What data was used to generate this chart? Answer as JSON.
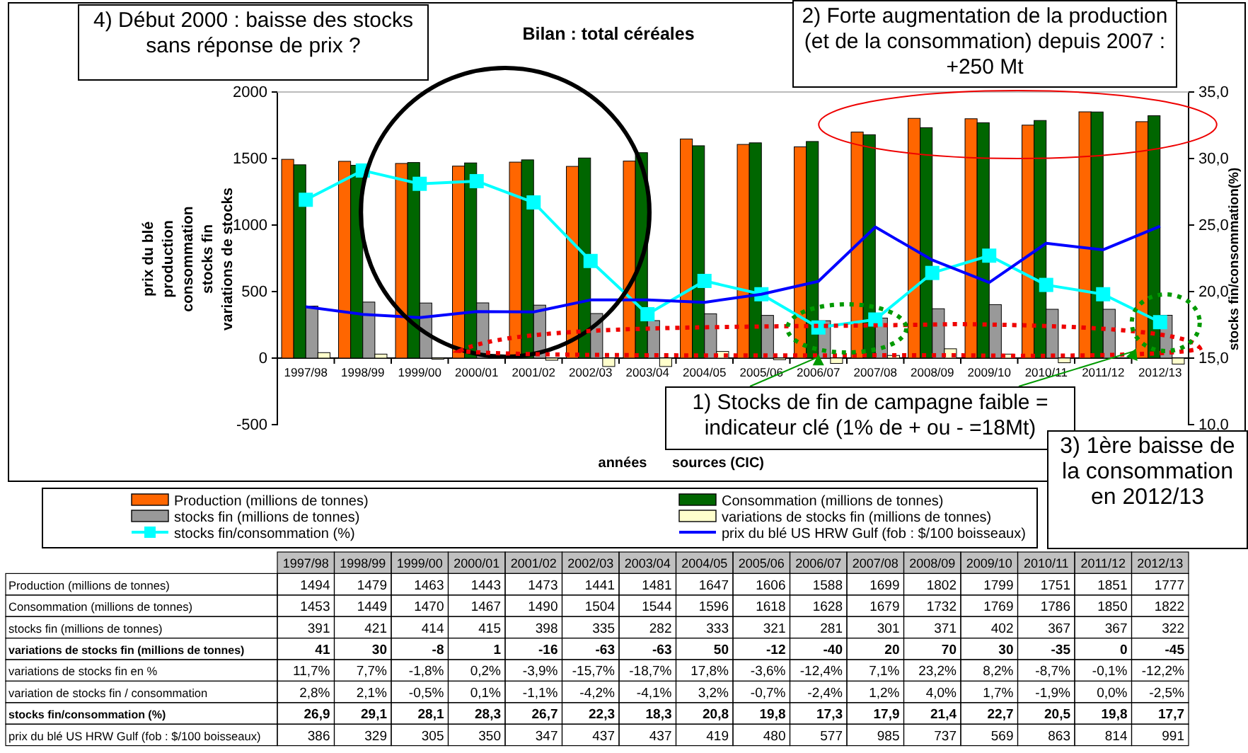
{
  "chart_data": {
    "type": "bar",
    "title": "Bilan : total céréales",
    "xlabel": "années",
    "ylabel": "prix du blé\nproduction\nconsommation\nstocks fin\nvariations de stocks",
    "y2label": "stocks fin/consommation(%)",
    "categories": [
      "1997/98",
      "1998/99",
      "1999/00",
      "2000/01",
      "2001/02",
      "2002/03",
      "2003/04",
      "2004/05",
      "2005/06",
      "2006/07",
      "2007/08",
      "2008/09",
      "2009/10",
      "2010/11",
      "2011/12",
      "2012/13"
    ],
    "ylim": [
      -500,
      2000
    ],
    "yticks": [
      -500,
      0,
      500,
      1000,
      1500,
      2000
    ],
    "y2lim": [
      10,
      35
    ],
    "y2ticks": [
      {
        "value": 10,
        "label": "10,0"
      },
      {
        "value": 15,
        "label": "15,0"
      },
      {
        "value": 20,
        "label": "20,0"
      },
      {
        "value": 25,
        "label": "25,0"
      },
      {
        "value": 30,
        "label": "30,0"
      },
      {
        "value": 35,
        "label": "35,0"
      }
    ],
    "legend": "bottom",
    "series": [
      {
        "name": "Production (millions de tonnes)",
        "color": "#ff6600",
        "values": [
          1494,
          1479,
          1463,
          1443,
          1473,
          1441,
          1481,
          1647,
          1606,
          1588,
          1699,
          1802,
          1799,
          1751,
          1851,
          1777
        ]
      },
      {
        "name": "Consommation (millions de tonnes)",
        "color": "#006600",
        "values": [
          1453,
          1449,
          1470,
          1467,
          1490,
          1504,
          1544,
          1596,
          1618,
          1628,
          1679,
          1732,
          1769,
          1786,
          1850,
          1822
        ]
      },
      {
        "name": "stocks fin (millions de tonnes)",
        "color": "#999999",
        "values": [
          391,
          421,
          414,
          415,
          398,
          335,
          282,
          333,
          321,
          281,
          301,
          371,
          402,
          367,
          367,
          322
        ]
      },
      {
        "name": "variations de stocks fin (millions de tonnes)",
        "color": "#ffffcc",
        "values": [
          41,
          30,
          -8,
          1,
          -16,
          -63,
          -63,
          50,
          -12,
          -40,
          20,
          70,
          30,
          -35,
          0,
          -45
        ]
      },
      {
        "name": "stocks fin/consommation (%)",
        "type": "line",
        "axis": "y2",
        "marker": "square",
        "color": "#00ffff",
        "values": [
          26.9,
          29.1,
          28.1,
          28.3,
          26.7,
          22.3,
          18.3,
          20.8,
          19.8,
          17.3,
          17.9,
          21.4,
          22.7,
          20.5,
          19.8,
          17.7
        ],
        "value_labels": [
          "26,9",
          "29,1",
          "28,1",
          "28,3",
          "26,7",
          "22,3",
          "18,3",
          "20,8",
          "19,8",
          "17,3",
          "17,9",
          "21,4",
          "22,7",
          "20,5",
          "19,8",
          "17,7"
        ]
      },
      {
        "name": "prix du blé US HRW Gulf (fob : $/100 boisseaux)",
        "type": "line",
        "marker": "none",
        "color": "#0000ff",
        "values": [
          386,
          329,
          305,
          350,
          347,
          437,
          437,
          419,
          480,
          577,
          985,
          737,
          569,
          863,
          814,
          991
        ]
      }
    ],
    "data_labels": true,
    "annotations": [
      "4) Début 2000 : baisse des stocks sans réponse de prix ?",
      "2) Forte augmentation de la production (et de la consommation) depuis 2007 : +250 Mt",
      {
        "text": "1) Stocks de fin de campagne faible = indicateur clé (1% de + ou - =18Mt)",
        "x": "2006/07",
        "y": 30
      },
      "3) 1ère baisse de la consommation en 2012/13",
      "sources (CIC)",
      "variations de stocks fin en %",
      "11,7%",
      "7,7%",
      "-1,8%",
      "0,2%",
      "-3,9%",
      "-15,7%",
      "-18,7%",
      "17,8%",
      "-3,6%",
      "-12,4%",
      "7,1%",
      "23,2%",
      "8,2%",
      "-8,7%",
      "-0,1%",
      "-12,2%",
      "variation de stocks fin / consommation",
      "2,8%",
      "2,1%",
      "-0,5%",
      "0,1%",
      "-1,1%",
      "-4,2%",
      "-4,1%",
      "3,2%",
      "-0,7%",
      "-2,4%",
      "1,2%",
      "4,0%",
      "1,7%",
      "-1,9%",
      "0,0%",
      "-2,5%"
    ]
  }
}
